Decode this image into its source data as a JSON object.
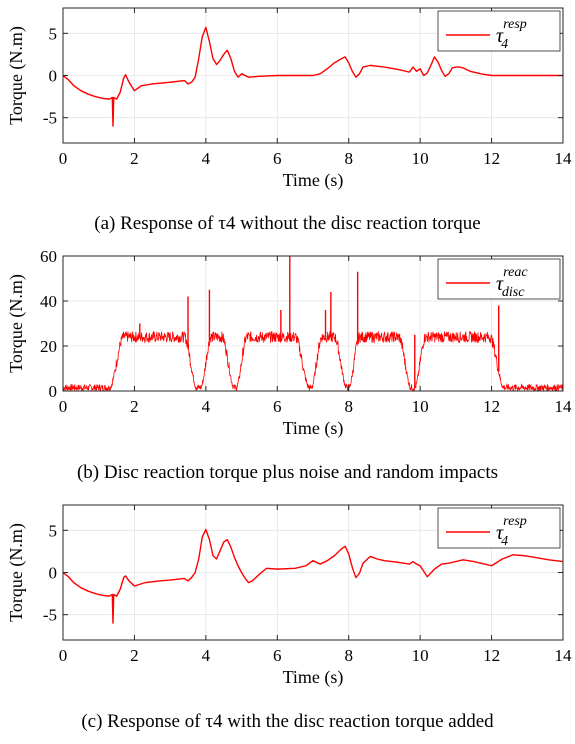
{
  "chart_data": [
    {
      "type": "line",
      "caption": "(a) Response of τ4 without the disc reaction torque",
      "xlabel": "Time (s)",
      "ylabel": "Torque (N.m)",
      "xlim": [
        0,
        14
      ],
      "ylim": [
        -8,
        8
      ],
      "xticks": [
        "0",
        "2",
        "4",
        "6",
        "8",
        "10",
        "12",
        "14"
      ],
      "xtick_values": [
        0,
        2,
        4,
        6,
        8,
        10,
        12,
        14
      ],
      "yticks": [
        "-5",
        "0",
        "5"
      ],
      "ytick_values": [
        -5,
        0,
        5
      ],
      "grid": true,
      "legend": {
        "symbol": "τ",
        "sub": "4",
        "sup": "resp",
        "placement": "top-right"
      },
      "series": [
        {
          "color": "#ff0000",
          "x": [
            0,
            0.15,
            0.3,
            0.5,
            0.7,
            0.9,
            1.1,
            1.3,
            1.38,
            1.4,
            1.42,
            1.5,
            1.6,
            1.7,
            1.75,
            1.85,
            2.0,
            2.2,
            2.5,
            3.0,
            3.4,
            3.5,
            3.6,
            3.7,
            3.8,
            3.9,
            4.0,
            4.1,
            4.2,
            4.3,
            4.4,
            4.5,
            4.6,
            4.7,
            4.8,
            4.9,
            5.0,
            5.2,
            5.5,
            6.0,
            6.5,
            7.0,
            7.2,
            7.4,
            7.6,
            7.8,
            7.9,
            8.0,
            8.1,
            8.2,
            8.3,
            8.4,
            8.6,
            9.0,
            9.4,
            9.7,
            9.8,
            9.9,
            10.0,
            10.1,
            10.2,
            10.3,
            10.4,
            10.5,
            10.6,
            10.7,
            10.8,
            10.9,
            11.0,
            11.1,
            11.2,
            11.4,
            11.7,
            12.0,
            12.5,
            13.0,
            14.0
          ],
          "y": [
            0,
            -0.5,
            -1.2,
            -1.8,
            -2.2,
            -2.5,
            -2.7,
            -2.8,
            -2.6,
            -6.0,
            -2.6,
            -2.8,
            -2.0,
            -0.3,
            0.1,
            -0.8,
            -1.8,
            -1.2,
            -1.0,
            -0.8,
            -0.6,
            -1.0,
            -0.8,
            -0.2,
            2.0,
            4.6,
            5.7,
            4.0,
            2.0,
            1.3,
            1.8,
            2.5,
            3.0,
            2.0,
            0.5,
            -0.2,
            0.2,
            -0.2,
            -0.1,
            0.0,
            0.0,
            0.0,
            0.2,
            0.8,
            1.5,
            2.0,
            2.2,
            1.5,
            0.5,
            -0.2,
            0.2,
            1.0,
            1.2,
            1.0,
            0.7,
            0.4,
            1.0,
            0.5,
            0.8,
            0.0,
            0.3,
            1.2,
            2.2,
            1.6,
            0.6,
            -0.1,
            0.2,
            0.9,
            1.0,
            1.0,
            0.9,
            0.5,
            0.2,
            0.0,
            0.0,
            0.0,
            0.0
          ]
        }
      ]
    },
    {
      "type": "line",
      "caption": "(b) Disc reaction torque plus noise and random impacts",
      "xlabel": "Time (s)",
      "ylabel": "Torque (N.m)",
      "xlim": [
        0,
        14
      ],
      "ylim": [
        0,
        60
      ],
      "xticks": [
        "0",
        "2",
        "4",
        "6",
        "8",
        "10",
        "12",
        "14"
      ],
      "xtick_values": [
        0,
        2,
        4,
        6,
        8,
        10,
        12,
        14
      ],
      "yticks": [
        "0",
        "20",
        "40",
        "60"
      ],
      "ytick_values": [
        0,
        20,
        40,
        60
      ],
      "grid": true,
      "legend": {
        "symbol": "τ",
        "sub": "disc",
        "sup": "reac",
        "placement": "top-right"
      },
      "levels": {
        "low": 1.5,
        "high": 24
      },
      "segments": [
        {
          "x": 0.0,
          "level": "low"
        },
        {
          "x": 1.3,
          "level": "low"
        },
        {
          "x": 1.7,
          "level": "high"
        },
        {
          "x": 3.4,
          "level": "high"
        },
        {
          "x": 3.75,
          "level": "low"
        },
        {
          "x": 3.85,
          "level": "low"
        },
        {
          "x": 4.15,
          "level": "high"
        },
        {
          "x": 4.45,
          "level": "high"
        },
        {
          "x": 4.8,
          "level": "low"
        },
        {
          "x": 4.85,
          "level": "low"
        },
        {
          "x": 5.15,
          "level": "high"
        },
        {
          "x": 6.5,
          "level": "high"
        },
        {
          "x": 6.9,
          "level": "low"
        },
        {
          "x": 6.95,
          "level": "low"
        },
        {
          "x": 7.25,
          "level": "high"
        },
        {
          "x": 7.6,
          "level": "high"
        },
        {
          "x": 7.95,
          "level": "low"
        },
        {
          "x": 8.0,
          "level": "low"
        },
        {
          "x": 8.3,
          "level": "high"
        },
        {
          "x": 9.4,
          "level": "high"
        },
        {
          "x": 9.75,
          "level": "low"
        },
        {
          "x": 9.85,
          "level": "low"
        },
        {
          "x": 10.15,
          "level": "high"
        },
        {
          "x": 11.95,
          "level": "high"
        },
        {
          "x": 12.35,
          "level": "low"
        },
        {
          "x": 14.0,
          "level": "low"
        }
      ],
      "spikes": [
        {
          "x": 2.15,
          "y": 30
        },
        {
          "x": 3.5,
          "y": 42
        },
        {
          "x": 4.1,
          "y": 45
        },
        {
          "x": 6.1,
          "y": 36
        },
        {
          "x": 6.35,
          "y": 60
        },
        {
          "x": 7.35,
          "y": 36
        },
        {
          "x": 7.5,
          "y": 44
        },
        {
          "x": 8.25,
          "y": 53
        },
        {
          "x": 9.85,
          "y": 25
        },
        {
          "x": 12.2,
          "y": 38
        }
      ],
      "noise_amplitude": 2.5,
      "series": [
        {
          "color": "#ff0000"
        }
      ]
    },
    {
      "type": "line",
      "caption": "(c) Response of τ4 with the disc reaction torque added",
      "xlabel": "Time (s)",
      "ylabel": "Torque (N.m)",
      "xlim": [
        0,
        14
      ],
      "ylim": [
        -8,
        8
      ],
      "xticks": [
        "0",
        "2",
        "4",
        "6",
        "8",
        "10",
        "12",
        "14"
      ],
      "xtick_values": [
        0,
        2,
        4,
        6,
        8,
        10,
        12,
        14
      ],
      "yticks": [
        "-5",
        "0",
        "5"
      ],
      "ytick_values": [
        -5,
        0,
        5
      ],
      "grid": true,
      "legend": {
        "symbol": "τ",
        "sub": "4",
        "sup": "resp",
        "placement": "top-right"
      },
      "series": [
        {
          "color": "#ff0000",
          "x": [
            0,
            0.15,
            0.3,
            0.5,
            0.7,
            0.9,
            1.1,
            1.3,
            1.38,
            1.4,
            1.42,
            1.5,
            1.6,
            1.7,
            1.75,
            1.85,
            2.0,
            2.3,
            2.7,
            3.0,
            3.4,
            3.5,
            3.6,
            3.7,
            3.8,
            3.9,
            4.0,
            4.1,
            4.2,
            4.3,
            4.4,
            4.5,
            4.6,
            4.7,
            4.8,
            4.9,
            5.0,
            5.1,
            5.2,
            5.3,
            5.5,
            5.7,
            6.0,
            6.5,
            6.8,
            7.0,
            7.2,
            7.4,
            7.6,
            7.8,
            7.9,
            8.0,
            8.1,
            8.2,
            8.3,
            8.4,
            8.6,
            8.8,
            9.0,
            9.4,
            9.7,
            9.8,
            9.9,
            10.0,
            10.2,
            10.4,
            10.6,
            10.8,
            11.0,
            11.2,
            11.5,
            11.8,
            12.0,
            12.3,
            12.6,
            12.9,
            13.2,
            13.6,
            14.0
          ],
          "y": [
            0,
            -0.5,
            -1.2,
            -1.8,
            -2.2,
            -2.5,
            -2.7,
            -2.8,
            -2.6,
            -6.0,
            -2.6,
            -2.8,
            -2.0,
            -0.6,
            -0.4,
            -1.0,
            -1.6,
            -1.2,
            -1.0,
            -0.9,
            -0.7,
            -1.0,
            -0.6,
            0.0,
            1.6,
            4.2,
            5.1,
            3.9,
            2.0,
            1.6,
            2.6,
            3.6,
            3.9,
            3.0,
            1.8,
            0.8,
            0.0,
            -0.7,
            -1.2,
            -1.0,
            -0.2,
            0.5,
            0.4,
            0.5,
            0.8,
            1.4,
            1.0,
            1.4,
            2.0,
            2.8,
            3.1,
            2.2,
            0.6,
            -0.6,
            -0.1,
            1.1,
            1.9,
            1.6,
            1.4,
            1.2,
            1.0,
            1.3,
            1.0,
            0.8,
            -0.5,
            0.4,
            1.0,
            1.1,
            1.3,
            1.5,
            1.3,
            1.0,
            0.8,
            1.6,
            2.1,
            2.0,
            1.8,
            1.5,
            1.3
          ]
        }
      ]
    }
  ]
}
